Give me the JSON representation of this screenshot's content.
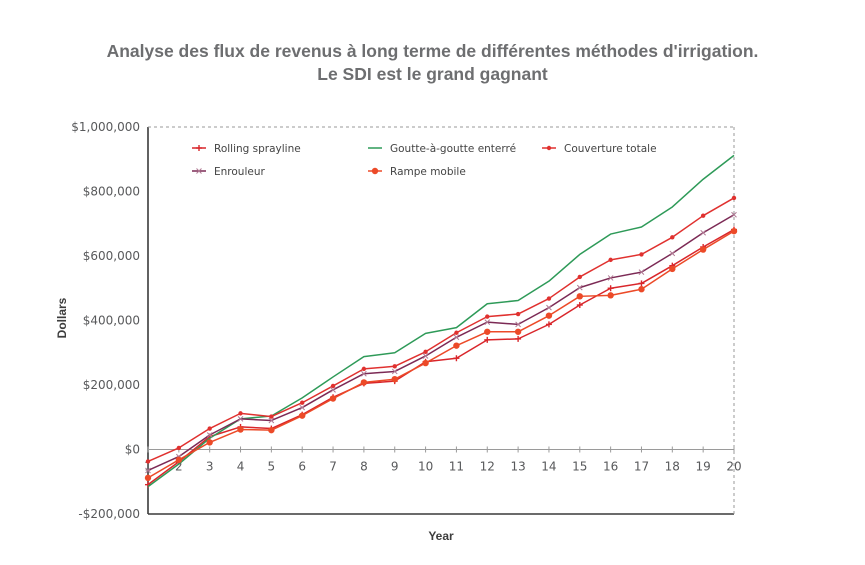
{
  "chart_data": {
    "type": "line",
    "title": [
      "Analyse des flux de revenus à long terme de différentes méthodes d'irrigation.",
      "Le SDI est le grand gagnant"
    ],
    "xlabel": "Year",
    "ylabel": "Dollars",
    "x": [
      1,
      2,
      3,
      4,
      5,
      6,
      7,
      8,
      9,
      10,
      11,
      12,
      13,
      14,
      15,
      16,
      17,
      18,
      19,
      20
    ],
    "x_tick_labels": [
      "1",
      "2",
      "3",
      "4",
      "5",
      "6",
      "7",
      "8",
      "9",
      "10",
      "11",
      "12",
      "13",
      "14",
      "15",
      "16",
      "17",
      "18",
      "19",
      "20"
    ],
    "ylim": [
      -200000,
      1000000
    ],
    "y_ticks": [
      -200000,
      0,
      200000,
      400000,
      600000,
      800000,
      1000000
    ],
    "y_tick_labels": [
      "-$200,000",
      "$0",
      "$200,000",
      "$400,000",
      "$600,000",
      "$800,000",
      "$1,000,000"
    ],
    "grid": false,
    "legend_position": "top-left",
    "series": [
      {
        "name": "Rolling sprayline",
        "color": "#d9262b",
        "marker": "plus",
        "values": [
          -109000,
          -38000,
          40000,
          70000,
          65000,
          108000,
          162000,
          205000,
          212000,
          272000,
          283000,
          340000,
          343000,
          388000,
          448000,
          500000,
          515000,
          570000,
          628000,
          682000
        ]
      },
      {
        "name": "Goutte-à-goutte enterré",
        "color": "#2e9a58",
        "marker": "none",
        "values": [
          -115000,
          -45000,
          35000,
          95000,
          104000,
          160000,
          225000,
          288000,
          300000,
          360000,
          378000,
          452000,
          462000,
          522000,
          605000,
          668000,
          690000,
          752000,
          838000,
          912000
        ]
      },
      {
        "name": "Couverture totale",
        "color": "#e0312f",
        "marker": "dot",
        "values": [
          -37000,
          5000,
          65000,
          112000,
          102000,
          145000,
          197000,
          250000,
          258000,
          303000,
          362000,
          412000,
          420000,
          468000,
          535000,
          588000,
          605000,
          658000,
          725000,
          780000
        ]
      },
      {
        "name": "Enrouleur",
        "color": "#7c2a55",
        "marker": "cross",
        "values": [
          -65000,
          -22000,
          45000,
          95000,
          90000,
          130000,
          185000,
          235000,
          242000,
          290000,
          348000,
          395000,
          388000,
          440000,
          502000,
          532000,
          550000,
          608000,
          672000,
          728000
        ]
      },
      {
        "name": "Rampe mobile",
        "color": "#ec4a28",
        "marker": "big-dot",
        "values": [
          -88000,
          -32000,
          22000,
          62000,
          60000,
          105000,
          158000,
          208000,
          218000,
          268000,
          322000,
          365000,
          365000,
          415000,
          475000,
          478000,
          497000,
          560000,
          620000,
          677000
        ]
      }
    ]
  }
}
